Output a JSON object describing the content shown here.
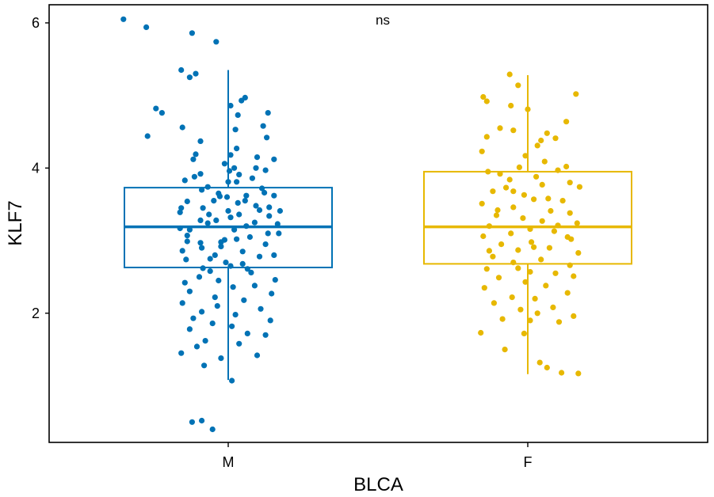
{
  "chart_data": {
    "type": "box",
    "xlabel": "BLCA",
    "ylabel": "KLF7",
    "ylim": [
      0.22,
      6.25
    ],
    "yticks": [
      2,
      4,
      6
    ],
    "categories": [
      "M",
      "F"
    ],
    "annotation": "ns",
    "series": [
      {
        "category": "M",
        "color": "#0072B5",
        "stats": {
          "q1": 2.63,
          "median": 3.19,
          "q3": 3.73,
          "whisker_low": 1.08,
          "whisker_high": 5.35
        },
        "points": [
          [
            -0.37,
            6.05
          ],
          [
            -0.18,
            5.94
          ],
          [
            0.2,
            5.86
          ],
          [
            0.4,
            5.74
          ],
          [
            0.11,
            5.35
          ],
          [
            0.23,
            5.3
          ],
          [
            0.18,
            5.25
          ],
          [
            0.64,
            4.97
          ],
          [
            0.61,
            4.93
          ],
          [
            -0.1,
            4.82
          ],
          [
            0.52,
            4.86
          ],
          [
            -0.05,
            4.76
          ],
          [
            0.58,
            4.73
          ],
          [
            0.83,
            4.76
          ],
          [
            0.12,
            4.56
          ],
          [
            -0.17,
            4.44
          ],
          [
            0.56,
            4.53
          ],
          [
            0.79,
            4.58
          ],
          [
            0.82,
            4.42
          ],
          [
            0.27,
            4.37
          ],
          [
            0.57,
            4.27
          ],
          [
            0.88,
            4.12
          ],
          [
            0.47,
            4.06
          ],
          [
            0.23,
            4.19
          ],
          [
            0.52,
            4.18
          ],
          [
            0.74,
            4.15
          ],
          [
            0.73,
            4.0
          ],
          [
            0.81,
            3.97
          ],
          [
            0.59,
            3.91
          ],
          [
            0.7,
            3.86
          ],
          [
            0.27,
            3.92
          ],
          [
            0.14,
            3.83
          ],
          [
            0.5,
            3.81
          ],
          [
            0.33,
            3.74
          ],
          [
            0.28,
            3.7
          ],
          [
            0.42,
            3.65
          ],
          [
            0.43,
            3.61
          ],
          [
            0.8,
            3.66
          ],
          [
            0.65,
            3.62
          ],
          [
            0.64,
            3.55
          ],
          [
            0.58,
            3.52
          ],
          [
            0.84,
            3.46
          ],
          [
            0.93,
            3.41
          ],
          [
            0.11,
            3.45
          ],
          [
            0.34,
            3.36
          ],
          [
            0.52,
            3.32
          ],
          [
            0.27,
            3.28
          ],
          [
            0.72,
            3.25
          ],
          [
            0.91,
            3.23
          ],
          [
            0.1,
            3.17
          ],
          [
            0.55,
            3.15
          ],
          [
            0.83,
            3.1
          ],
          [
            0.16,
            3.07
          ],
          [
            0.57,
            3.02
          ],
          [
            0.44,
            2.98
          ],
          [
            0.81,
            2.95
          ],
          [
            0.28,
            2.9
          ],
          [
            0.62,
            2.85
          ],
          [
            0.39,
            2.8
          ],
          [
            0.76,
            2.78
          ],
          [
            0.15,
            2.74
          ],
          [
            0.48,
            2.7
          ],
          [
            0.52,
            2.65
          ],
          [
            0.66,
            2.61
          ],
          [
            0.35,
            2.58
          ],
          [
            0.26,
            2.5
          ],
          [
            0.89,
            2.46
          ],
          [
            0.14,
            2.42
          ],
          [
            0.72,
            2.38
          ],
          [
            0.54,
            2.36
          ],
          [
            0.18,
            2.3
          ],
          [
            0.86,
            2.27
          ],
          [
            0.39,
            2.22
          ],
          [
            0.63,
            2.18
          ],
          [
            0.12,
            2.14
          ],
          [
            0.41,
            2.1
          ],
          [
            0.77,
            2.06
          ],
          [
            0.28,
            2.02
          ],
          [
            0.56,
            1.98
          ],
          [
            0.21,
            1.93
          ],
          [
            0.85,
            1.9
          ],
          [
            0.37,
            1.86
          ],
          [
            0.53,
            1.82
          ],
          [
            0.18,
            1.78
          ],
          [
            0.66,
            1.72
          ],
          [
            0.81,
            1.7
          ],
          [
            0.31,
            1.62
          ],
          [
            0.59,
            1.58
          ],
          [
            0.24,
            1.54
          ],
          [
            0.11,
            1.45
          ],
          [
            0.74,
            1.42
          ],
          [
            0.44,
            1.38
          ],
          [
            0.3,
            1.28
          ],
          [
            0.53,
            1.07
          ],
          [
            0.28,
            0.52
          ],
          [
            0.37,
            0.4
          ],
          [
            0.2,
            0.5
          ],
          [
            0.73,
            3.48
          ],
          [
            0.16,
            3.54
          ],
          [
            0.29,
            3.45
          ],
          [
            0.59,
            3.36
          ],
          [
            0.5,
            3.41
          ],
          [
            0.27,
            2.97
          ],
          [
            0.44,
            2.92
          ],
          [
            0.4,
            3.28
          ],
          [
            0.84,
            3.34
          ],
          [
            0.12,
            2.86
          ],
          [
            0.68,
            3.05
          ],
          [
            0.49,
            3.6
          ],
          [
            0.35,
            2.75
          ],
          [
            0.18,
            3.15
          ],
          [
            0.62,
            2.68
          ],
          [
            0.78,
            3.72
          ],
          [
            0.55,
            4.0
          ],
          [
            0.1,
            3.39
          ],
          [
            0.88,
            3.62
          ],
          [
            0.22,
            3.88
          ],
          [
            0.69,
            2.56
          ],
          [
            0.42,
            2.45
          ],
          [
            0.51,
            3.96
          ],
          [
            0.33,
            3.24
          ],
          [
            0.65,
            3.2
          ],
          [
            0.16,
            2.99
          ],
          [
            0.88,
            2.8
          ],
          [
            0.76,
            3.42
          ],
          [
            0.38,
            3.55
          ],
          [
            0.21,
            4.12
          ],
          [
            0.92,
            3.1
          ],
          [
            0.57,
            3.81
          ],
          [
            0.29,
            2.62
          ],
          [
            0.47,
            3.01
          ]
        ]
      },
      {
        "category": "F",
        "color": "#E7B800",
        "stats": {
          "q1": 2.68,
          "median": 3.19,
          "q3": 3.95,
          "whisker_low": 1.16,
          "whisker_high": 5.28
        },
        "points": [
          [
            0.35,
            5.29
          ],
          [
            0.42,
            5.14
          ],
          [
            0.13,
            4.98
          ],
          [
            0.16,
            4.92
          ],
          [
            0.36,
            4.86
          ],
          [
            0.5,
            4.81
          ],
          [
            0.9,
            5.02
          ],
          [
            0.82,
            4.64
          ],
          [
            0.27,
            4.55
          ],
          [
            0.38,
            4.52
          ],
          [
            0.66,
            4.48
          ],
          [
            0.73,
            4.41
          ],
          [
            0.16,
            4.43
          ],
          [
            0.61,
            4.38
          ],
          [
            0.12,
            4.23
          ],
          [
            0.48,
            4.17
          ],
          [
            0.64,
            4.09
          ],
          [
            0.82,
            4.02
          ],
          [
            0.43,
            4.01
          ],
          [
            0.17,
            3.95
          ],
          [
            0.75,
            3.97
          ],
          [
            0.27,
            3.92
          ],
          [
            0.57,
            3.88
          ],
          [
            0.85,
            3.8
          ],
          [
            0.35,
            3.84
          ],
          [
            0.62,
            3.77
          ],
          [
            0.93,
            3.74
          ],
          [
            0.21,
            3.68
          ],
          [
            0.47,
            3.63
          ],
          [
            0.55,
            3.57
          ],
          [
            0.79,
            3.55
          ],
          [
            0.12,
            3.51
          ],
          [
            0.38,
            3.46
          ],
          [
            0.69,
            3.41
          ],
          [
            0.85,
            3.38
          ],
          [
            0.24,
            3.35
          ],
          [
            0.46,
            3.31
          ],
          [
            0.62,
            3.27
          ],
          [
            0.91,
            3.24
          ],
          [
            0.18,
            3.2
          ],
          [
            0.52,
            3.16
          ],
          [
            0.72,
            3.13
          ],
          [
            0.36,
            3.1
          ],
          [
            0.13,
            3.06
          ],
          [
            0.86,
            3.02
          ],
          [
            0.53,
            2.98
          ],
          [
            0.28,
            2.95
          ],
          [
            0.68,
            2.9
          ],
          [
            0.42,
            2.87
          ],
          [
            0.92,
            2.83
          ],
          [
            0.21,
            2.78
          ],
          [
            0.61,
            2.74
          ],
          [
            0.38,
            2.7
          ],
          [
            0.85,
            2.66
          ],
          [
            0.16,
            2.61
          ],
          [
            0.52,
            2.57
          ],
          [
            0.73,
            2.55
          ],
          [
            0.26,
            2.49
          ],
          [
            0.48,
            2.43
          ],
          [
            0.65,
            2.38
          ],
          [
            0.14,
            2.35
          ],
          [
            0.83,
            2.28
          ],
          [
            0.37,
            2.22
          ],
          [
            0.56,
            2.2
          ],
          [
            0.22,
            2.14
          ],
          [
            0.71,
            2.08
          ],
          [
            0.44,
            2.05
          ],
          [
            0.58,
            2.0
          ],
          [
            0.88,
            1.96
          ],
          [
            0.29,
            1.92
          ],
          [
            0.52,
            1.9
          ],
          [
            0.76,
            1.88
          ],
          [
            0.11,
            1.73
          ],
          [
            0.47,
            1.72
          ],
          [
            0.31,
            1.5
          ],
          [
            0.6,
            1.32
          ],
          [
            0.78,
            1.18
          ],
          [
            0.92,
            1.17
          ],
          [
            0.66,
            1.25
          ],
          [
            0.38,
            3.68
          ],
          [
            0.75,
            3.21
          ],
          [
            0.55,
            2.91
          ],
          [
            0.25,
            3.42
          ],
          [
            0.83,
            3.05
          ],
          [
            0.42,
            2.62
          ],
          [
            0.67,
            3.58
          ],
          [
            0.18,
            2.86
          ],
          [
            0.58,
            4.31
          ],
          [
            0.88,
            2.51
          ],
          [
            0.32,
            3.73
          ]
        ]
      }
    ]
  }
}
